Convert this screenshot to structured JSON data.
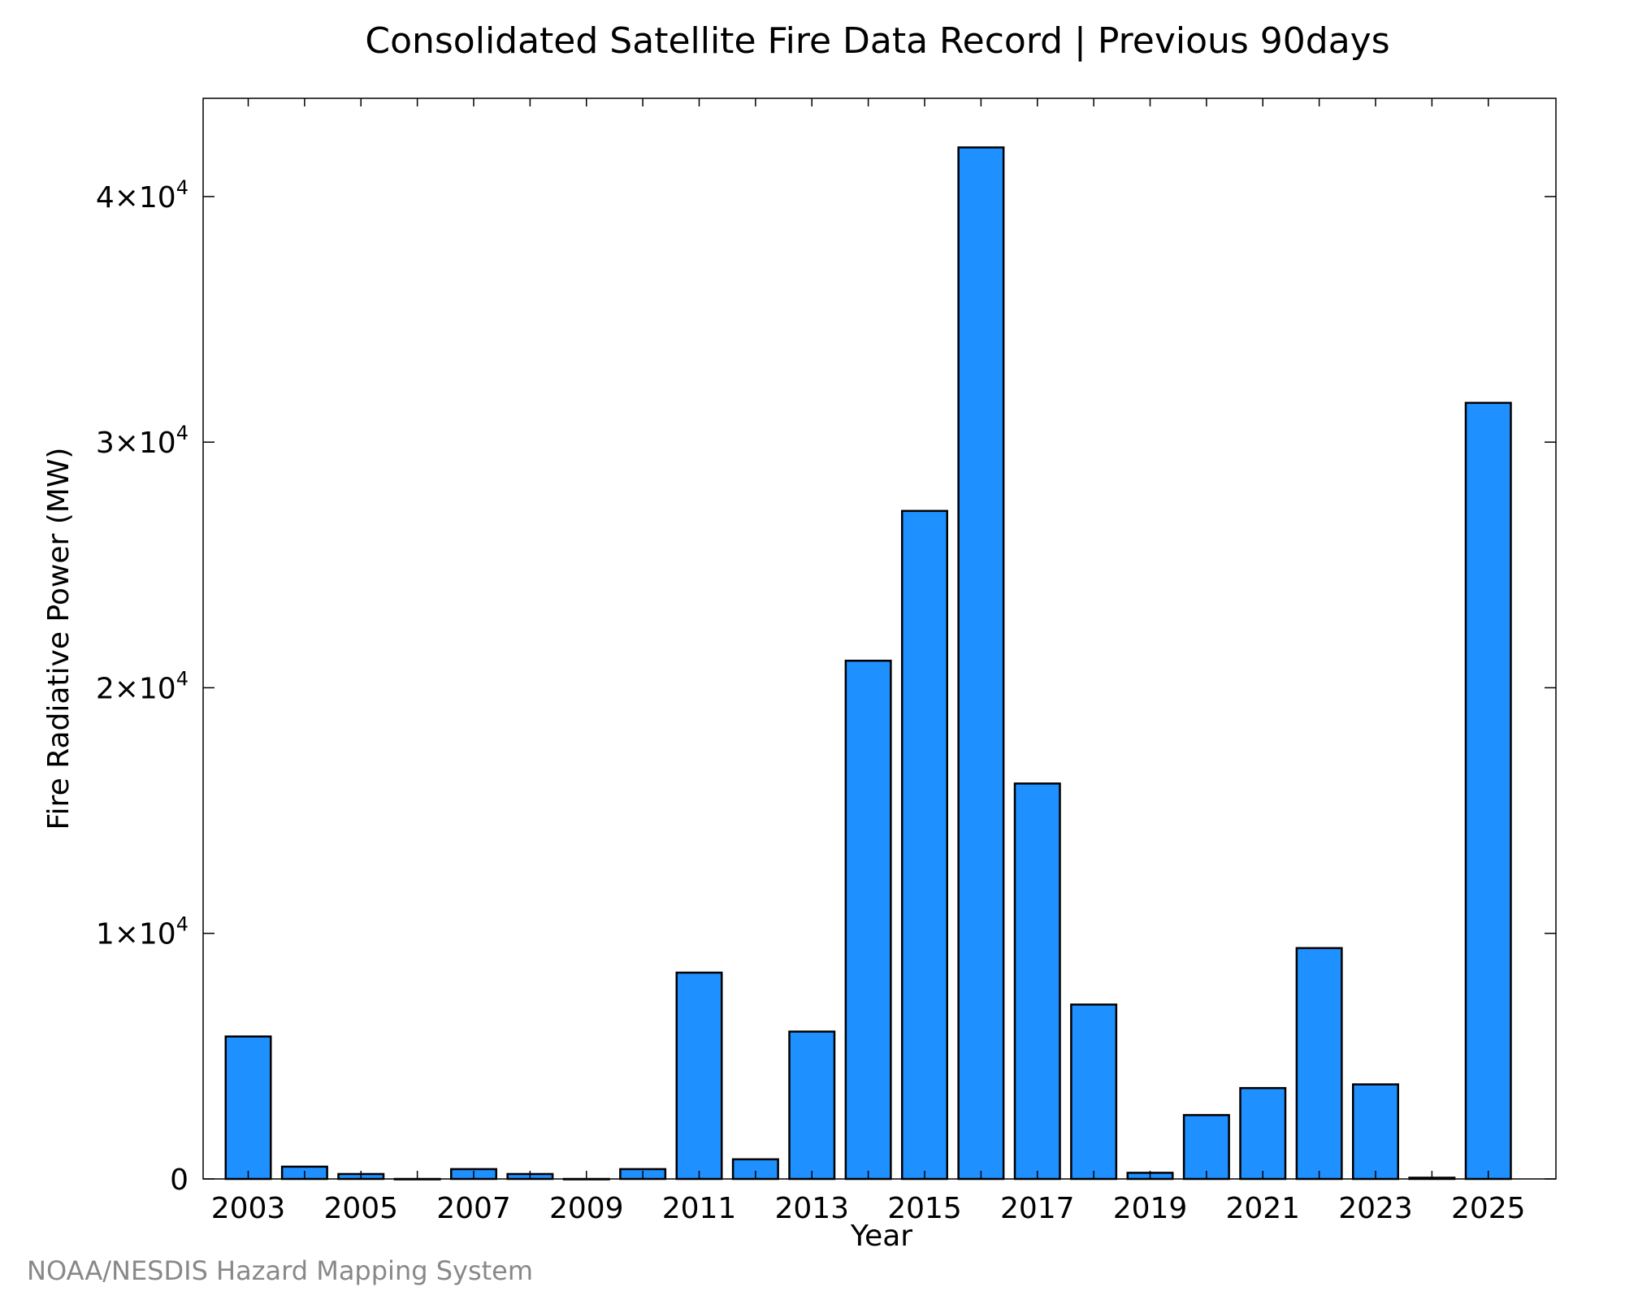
{
  "chart_data": {
    "type": "bar",
    "title": "Consolidated Satellite Fire Data Record | Previous 90days",
    "xlabel": "Year",
    "ylabel": "Fire Radiative Power (MW)",
    "categories": [
      "2003",
      "2004",
      "2005",
      "2006",
      "2007",
      "2008",
      "2009",
      "2010",
      "2011",
      "2012",
      "2013",
      "2014",
      "2015",
      "2016",
      "2017",
      "2018",
      "2019",
      "2020",
      "2021",
      "2022",
      "2023",
      "2024",
      "2025"
    ],
    "values": [
      5800,
      500,
      200,
      0,
      400,
      200,
      0,
      400,
      8400,
      800,
      6000,
      21100,
      27200,
      42000,
      16100,
      7100,
      250,
      2600,
      3700,
      9400,
      3850,
      50,
      31600
    ],
    "x_tick_labels": [
      "2003",
      "2005",
      "2007",
      "2009",
      "2011",
      "2013",
      "2015",
      "2017",
      "2019",
      "2021",
      "2023",
      "2025"
    ],
    "y_ticks": [
      0,
      10000,
      20000,
      30000,
      40000
    ],
    "y_tick_labels": [
      {
        "value": 0,
        "mantissa": "0",
        "exponent": ""
      },
      {
        "value": 10000,
        "mantissa": "1×10",
        "exponent": "4"
      },
      {
        "value": 20000,
        "mantissa": "2×10",
        "exponent": "4"
      },
      {
        "value": 30000,
        "mantissa": "3×10",
        "exponent": "4"
      },
      {
        "value": 40000,
        "mantissa": "4×10",
        "exponent": "4"
      }
    ],
    "ylim": [
      0,
      44000
    ],
    "xlim": [
      2002.2,
      2026.2
    ],
    "bar_color": "#1e90ff",
    "bar_edge_color": "#000000",
    "grid": false,
    "legend": "none"
  },
  "credit": "NOAA/NESDIS Hazard Mapping System"
}
